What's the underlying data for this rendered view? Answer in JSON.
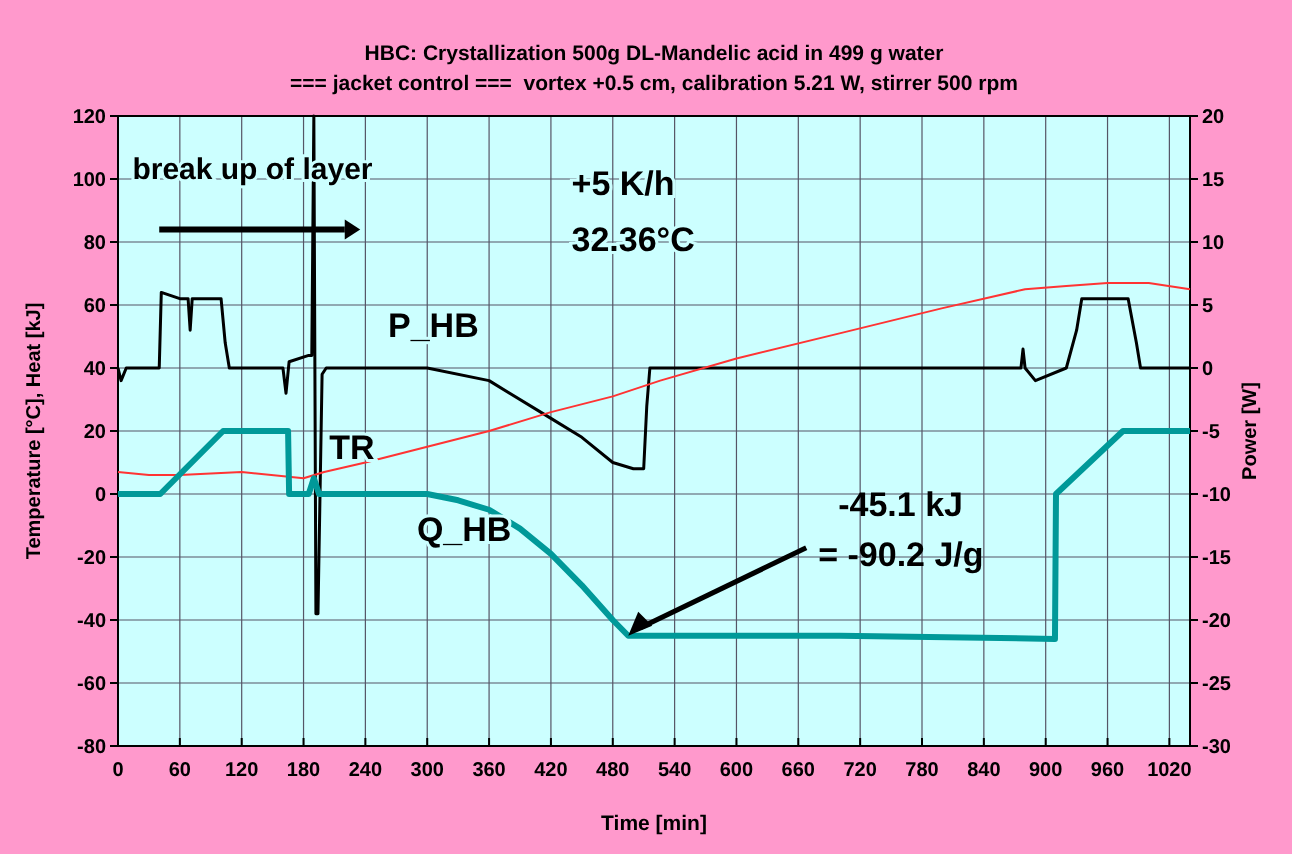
{
  "chart_data": {
    "type": "line",
    "title": "HBC: Crystallization 500g DL-Mandelic acid in 499 g water",
    "subtitle": "=== jacket control ===  vortex +0.5 cm, calibration 5.21 W, stirrer 500 rpm",
    "xlabel": "Time [min]",
    "ylabel": "Temperature [°C], Heat [kJ]",
    "y2label": "Power [W]",
    "xlim": [
      0,
      1040
    ],
    "xticks": [
      0,
      60,
      120,
      180,
      240,
      300,
      360,
      420,
      480,
      540,
      600,
      660,
      720,
      780,
      840,
      900,
      960,
      1020
    ],
    "ylim": [
      -80,
      120
    ],
    "yticks": [
      -80,
      -60,
      -40,
      -20,
      0,
      20,
      40,
      60,
      80,
      100,
      120
    ],
    "y2lim": [
      -30,
      20
    ],
    "y2ticks": [
      -30,
      -25,
      -20,
      -15,
      -10,
      -5,
      0,
      5,
      10,
      15,
      20
    ],
    "grid": true,
    "marker": "none",
    "line_style": "solid",
    "series": [
      {
        "name": "P_HB",
        "color": "#000000",
        "axis": "y2",
        "x": [
          0,
          3,
          8,
          40,
          42,
          60,
          68,
          70,
          72,
          100,
          104,
          108,
          160,
          163,
          166,
          185,
          188,
          190,
          192,
          194,
          198,
          202,
          206,
          240,
          300,
          360,
          420,
          450,
          480,
          500,
          510,
          513,
          516,
          540,
          700,
          876,
          878,
          880,
          890,
          920,
          930,
          935,
          980,
          988,
          992,
          1040
        ],
        "values": [
          0,
          -1,
          0,
          0,
          6,
          5.5,
          5.5,
          3,
          5.5,
          5.5,
          2,
          0,
          0,
          -2,
          0.5,
          1,
          1,
          20,
          -19.5,
          -19.5,
          -0.5,
          0,
          0,
          0,
          0,
          -1,
          -4,
          -5.5,
          -7.5,
          -8,
          -8,
          -3,
          0,
          0,
          0,
          0,
          1.5,
          0,
          -1,
          0,
          3,
          5.5,
          5.5,
          2,
          0,
          0
        ]
      },
      {
        "name": "TR",
        "color": "#ff3333",
        "x": [
          0,
          30,
          60,
          120,
          180,
          200,
          240,
          300,
          360,
          420,
          480,
          526,
          600,
          700,
          800,
          880,
          920,
          960,
          1000,
          1040
        ],
        "values": [
          7,
          6,
          6,
          7,
          5,
          7,
          10,
          15,
          20,
          26,
          31,
          36,
          43,
          51,
          59,
          65,
          66,
          67,
          67,
          65
        ]
      },
      {
        "name": "Q_HB",
        "color": "#009999",
        "x": [
          0,
          41,
          102,
          165,
          166,
          185,
          190,
          195,
          300,
          330,
          360,
          390,
          420,
          450,
          480,
          495,
          700,
          909,
          910,
          975,
          1040
        ],
        "values": [
          0,
          0,
          20,
          20,
          0,
          0,
          5,
          0,
          0,
          -2,
          -5,
          -11,
          -19,
          -29,
          -40,
          -45,
          -45,
          -46,
          0,
          20,
          20
        ]
      }
    ],
    "annotations": [
      "break up of layer",
      "+5 K/h",
      "32.36°C",
      {
        "text": "-45.1 kJ\n= -90.2 J/g",
        "x": 495,
        "y": -45
      }
    ]
  }
}
